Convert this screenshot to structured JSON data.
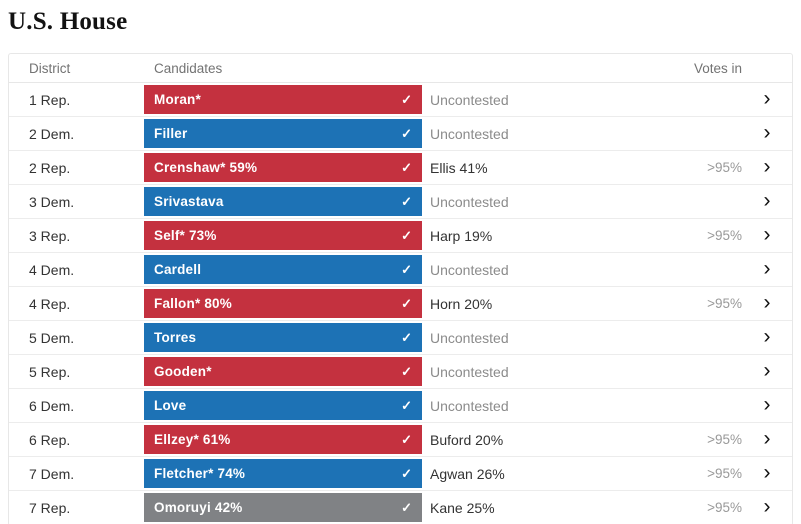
{
  "page": {
    "title": "U.S. House"
  },
  "table": {
    "headers": {
      "district": "District",
      "candidates": "Candidates",
      "votes_in": "Votes in"
    },
    "icons": {
      "winner_check": "✓",
      "chevron": "›"
    },
    "colors": {
      "rep": "#c4313f",
      "dem": "#1d72b5",
      "undecided": "#808285"
    },
    "rows": [
      {
        "district": "1 Rep.",
        "leader": "Moran*",
        "party": "rep",
        "opponent": "Uncontested",
        "muted": true,
        "votes_in": ""
      },
      {
        "district": "2 Dem.",
        "leader": "Filler",
        "party": "dem",
        "opponent": "Uncontested",
        "muted": true,
        "votes_in": ""
      },
      {
        "district": "2 Rep.",
        "leader": "Crenshaw* 59%",
        "party": "rep",
        "opponent": "Ellis 41%",
        "muted": false,
        "votes_in": ">95%"
      },
      {
        "district": "3 Dem.",
        "leader": "Srivastava",
        "party": "dem",
        "opponent": "Uncontested",
        "muted": true,
        "votes_in": ""
      },
      {
        "district": "3 Rep.",
        "leader": "Self* 73%",
        "party": "rep",
        "opponent": "Harp 19%",
        "muted": false,
        "votes_in": ">95%"
      },
      {
        "district": "4 Dem.",
        "leader": "Cardell",
        "party": "dem",
        "opponent": "Uncontested",
        "muted": true,
        "votes_in": ""
      },
      {
        "district": "4 Rep.",
        "leader": "Fallon* 80%",
        "party": "rep",
        "opponent": "Horn 20%",
        "muted": false,
        "votes_in": ">95%"
      },
      {
        "district": "5 Dem.",
        "leader": "Torres",
        "party": "dem",
        "opponent": "Uncontested",
        "muted": true,
        "votes_in": ""
      },
      {
        "district": "5 Rep.",
        "leader": "Gooden*",
        "party": "rep",
        "opponent": "Uncontested",
        "muted": true,
        "votes_in": ""
      },
      {
        "district": "6 Dem.",
        "leader": "Love",
        "party": "dem",
        "opponent": "Uncontested",
        "muted": true,
        "votes_in": ""
      },
      {
        "district": "6 Rep.",
        "leader": "Ellzey* 61%",
        "party": "rep",
        "opponent": "Buford 20%",
        "muted": false,
        "votes_in": ">95%"
      },
      {
        "district": "7 Dem.",
        "leader": "Fletcher* 74%",
        "party": "dem",
        "opponent": "Agwan 26%",
        "muted": false,
        "votes_in": ">95%"
      },
      {
        "district": "7 Rep.",
        "leader": "Omoruyi 42%",
        "party": "undecided",
        "opponent": "Kane 25%",
        "muted": false,
        "votes_in": ">95%"
      }
    ]
  }
}
